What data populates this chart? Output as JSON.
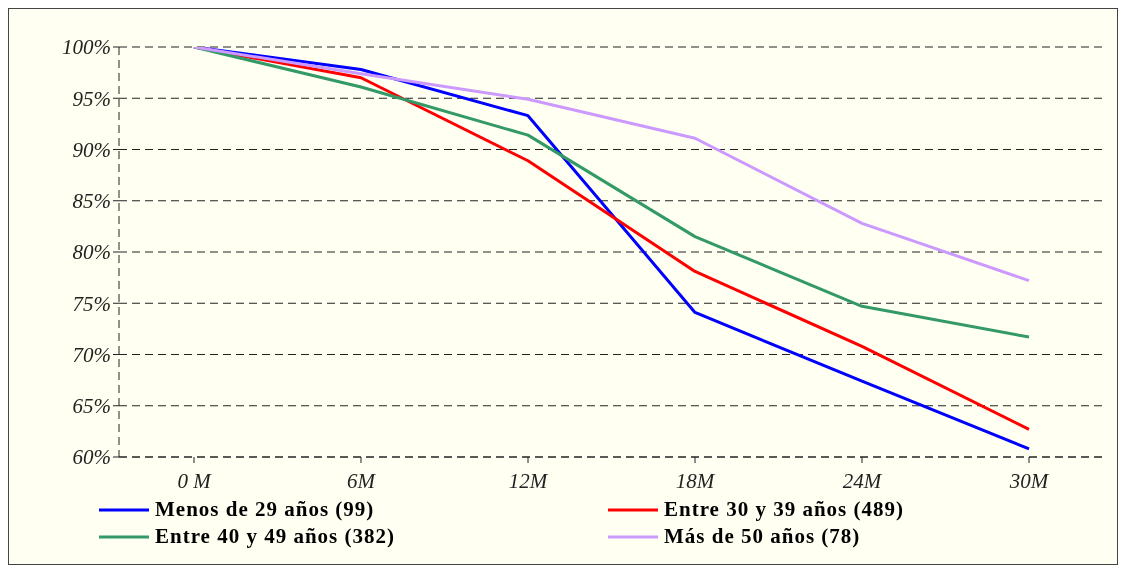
{
  "chart_data": {
    "type": "line",
    "categories": [
      "0 M",
      "6M",
      "12M",
      "18M",
      "24M",
      "30M"
    ],
    "series": [
      {
        "name": "Menos de 29 años (99)",
        "color": "#0000ff",
        "values": [
          100,
          97.8,
          93.3,
          74.1,
          67.4,
          60.8
        ]
      },
      {
        "name": "Entre 30 y 39 años (489)",
        "color": "#ff0000",
        "values": [
          100,
          97.0,
          88.9,
          78.1,
          70.8,
          62.7
        ]
      },
      {
        "name": "Entre 40 y 49 años (382)",
        "color": "#339966",
        "values": [
          100,
          96.1,
          91.4,
          81.5,
          74.7,
          71.7
        ]
      },
      {
        "name": "Más de 50 años (78)",
        "color": "#cc99ff",
        "values": [
          100,
          97.4,
          94.9,
          91.1,
          82.8,
          77.2
        ]
      }
    ],
    "ylim": [
      60,
      100
    ],
    "yticks": [
      {
        "value": 60,
        "label": "60%"
      },
      {
        "value": 65,
        "label": "65%"
      },
      {
        "value": 70,
        "label": "70%"
      },
      {
        "value": 75,
        "label": "75%"
      },
      {
        "value": 80,
        "label": "80%"
      },
      {
        "value": 85,
        "label": "85%"
      },
      {
        "value": 90,
        "label": "90%"
      },
      {
        "value": 95,
        "label": "95%"
      },
      {
        "value": 100,
        "label": "100%"
      }
    ],
    "grid": "y",
    "legend": "bottom",
    "marker": "none",
    "line_style": "solid"
  }
}
